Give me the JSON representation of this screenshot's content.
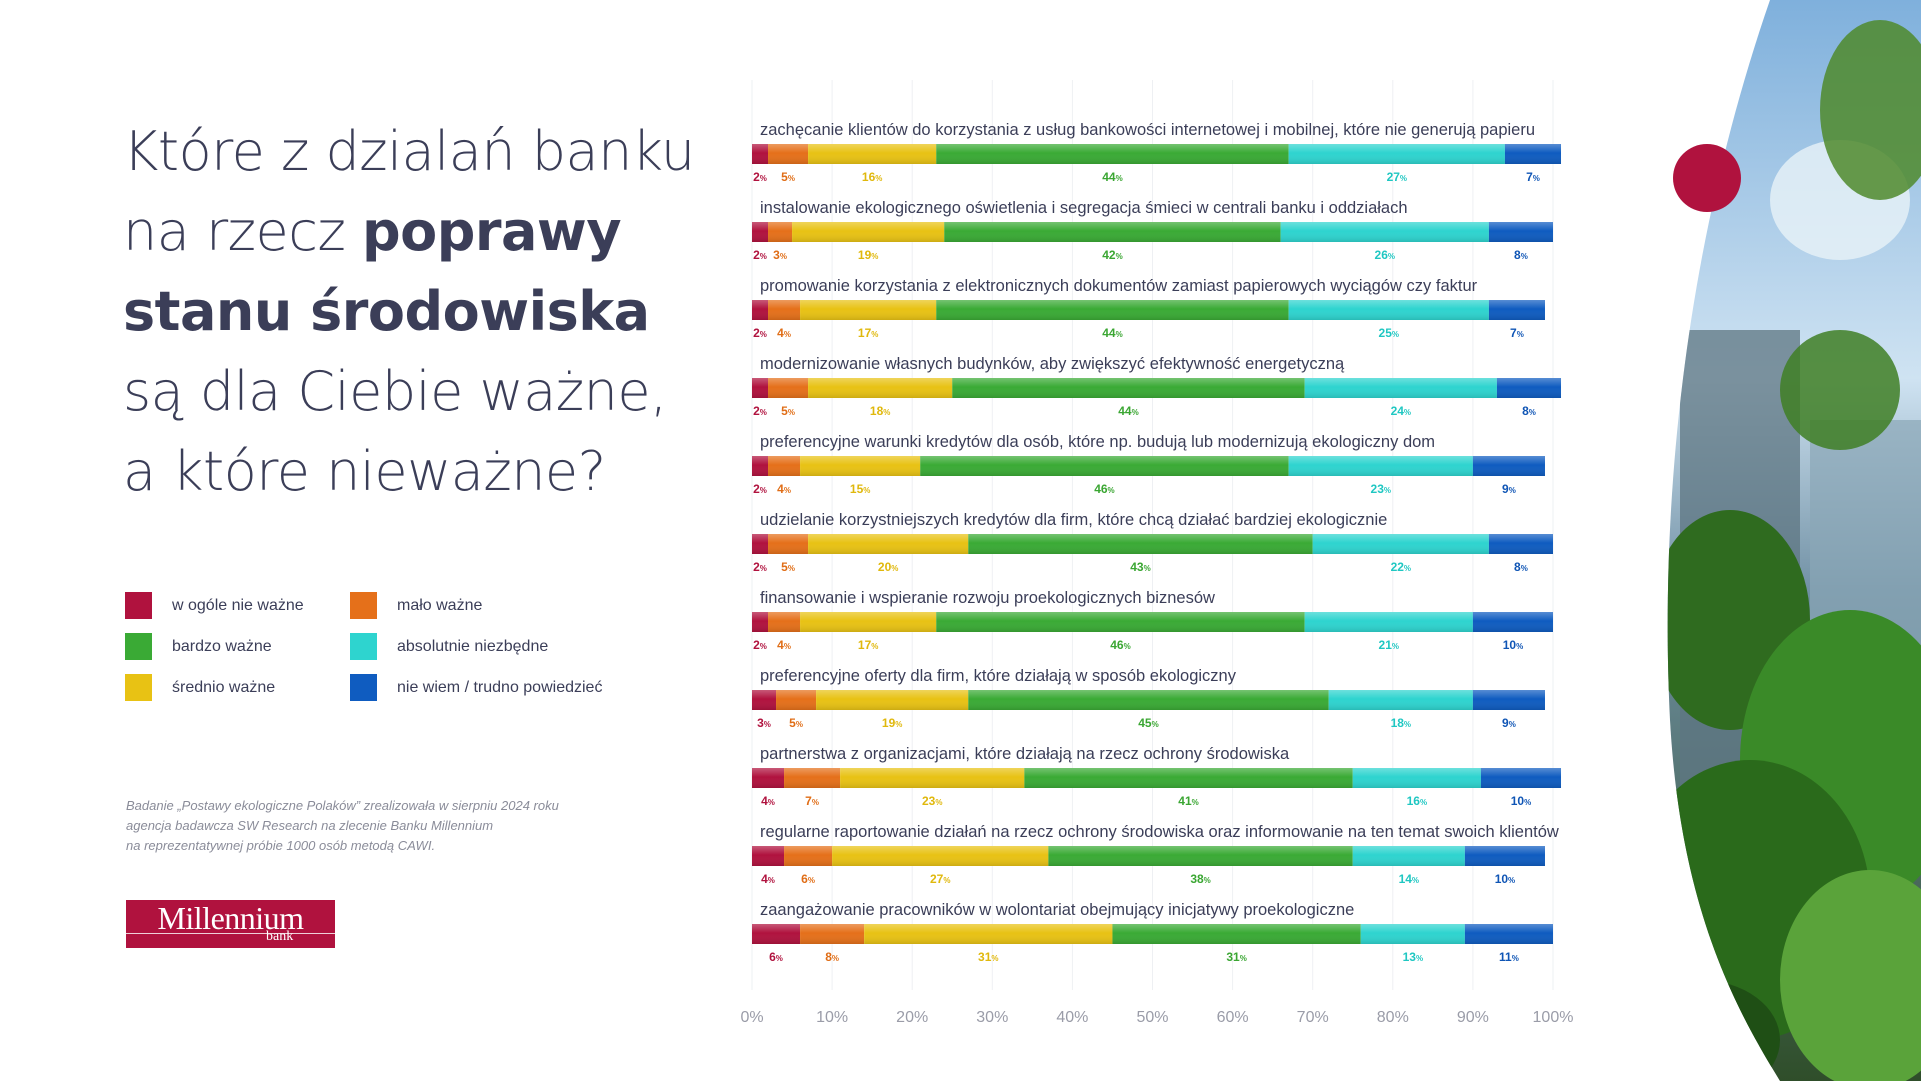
{
  "heading": {
    "l1": "Które z dzialań banku",
    "l2a": "na rzecz ",
    "l2b": "poprawy",
    "l3": "stanu środowiska",
    "l4": "są dla Ciebie ważne,",
    "l5": "a które nieważne?"
  },
  "legend": [
    {
      "label": "w ogóle nie ważne",
      "color": "#b0123e"
    },
    {
      "label": "mało ważne",
      "color": "#e5701a"
    },
    {
      "label": "bardzo ważne",
      "color": "#3aaa35"
    },
    {
      "label": "absolutnie niezbędne",
      "color": "#2ed4cf"
    },
    {
      "label": "średnio ważne",
      "color": "#e8c214"
    },
    {
      "label": "nie wiem / trudno powiedzieć",
      "color": "#0f5cc0"
    }
  ],
  "note": {
    "l1": "Badanie „Postawy ekologiczne Polaków” zrealizowała w sierpniu 2024 roku",
    "l2": "agencja badawcza SW Research na zlecenie Banku Millennium",
    "l3": "na reprezentatywnej próbie 1000 osób metodą CAWI."
  },
  "logo": {
    "name": "Millennium",
    "sub": "bank"
  },
  "chart_data": {
    "type": "bar",
    "orientation": "horizontal",
    "stacked": true,
    "unit": "%",
    "xlim": [
      0,
      100
    ],
    "x_ticks": [
      "0%",
      "10%",
      "20%",
      "30%",
      "40%",
      "50%",
      "60%",
      "70%",
      "80%",
      "90%",
      "100%"
    ],
    "categories": [
      "zachęcanie klientów do korzystania z usług bankowości internetowej i mobilnej, które nie generują papieru",
      "instalowanie ekologicznego oświetlenia i segregacja śmieci w centrali banku i oddziałach",
      "promowanie korzystania z elektronicznych dokumentów zamiast papierowych wyciągów czy faktur",
      "modernizowanie własnych budynków, aby zwiększyć efektywność energetyczną",
      "preferencyjne warunki kredytów dla osób, które np. budują lub modernizują ekologiczny dom",
      "udzielanie korzystniejszych kredytów dla firm, które chcą działać bardziej ekologicznie",
      "finansowanie i wspieranie rozwoju proekologicznych biznesów",
      "preferencyjne oferty dla firm, które działają w sposób ekologiczny",
      "partnerstwa z organizacjami, które działają na rzecz ochrony środowiska",
      "regularne raportowanie działań na rzecz ochrony środowiska oraz informowanie na ten temat swoich klientów",
      "zaangażowanie pracowników w wolontariat obejmujący inicjatywy proekologiczne"
    ],
    "series": [
      {
        "name": "w ogóle nie ważne",
        "color": "#b0123e",
        "label_color": "#b0123e",
        "values": [
          2,
          2,
          2,
          2,
          2,
          2,
          2,
          3,
          4,
          4,
          6
        ]
      },
      {
        "name": "mało ważne",
        "color": "#e5701a",
        "label_color": "#e06d16",
        "values": [
          5,
          3,
          4,
          5,
          4,
          5,
          4,
          5,
          7,
          6,
          8
        ]
      },
      {
        "name": "średnio ważne",
        "color": "#e8c214",
        "label_color": "#e0b80c",
        "values": [
          16,
          19,
          17,
          18,
          15,
          20,
          17,
          19,
          23,
          27,
          31
        ]
      },
      {
        "name": "bardzo ważne",
        "color": "#3aaa35",
        "label_color": "#3aa632",
        "values": [
          44,
          42,
          44,
          44,
          46,
          43,
          46,
          45,
          41,
          38,
          31
        ]
      },
      {
        "name": "absolutnie niezbędne",
        "color": "#2ed4cf",
        "label_color": "#1fc7c2",
        "values": [
          27,
          26,
          25,
          24,
          23,
          22,
          21,
          18,
          16,
          14,
          13
        ]
      },
      {
        "name": "nie wiem / trudno powiedzieć",
        "color": "#0f5cc0",
        "label_color": "#0f55b5",
        "values": [
          7,
          8,
          7,
          8,
          9,
          8,
          10,
          9,
          10,
          10,
          11
        ]
      }
    ],
    "grid": true,
    "legend_position": "left"
  }
}
